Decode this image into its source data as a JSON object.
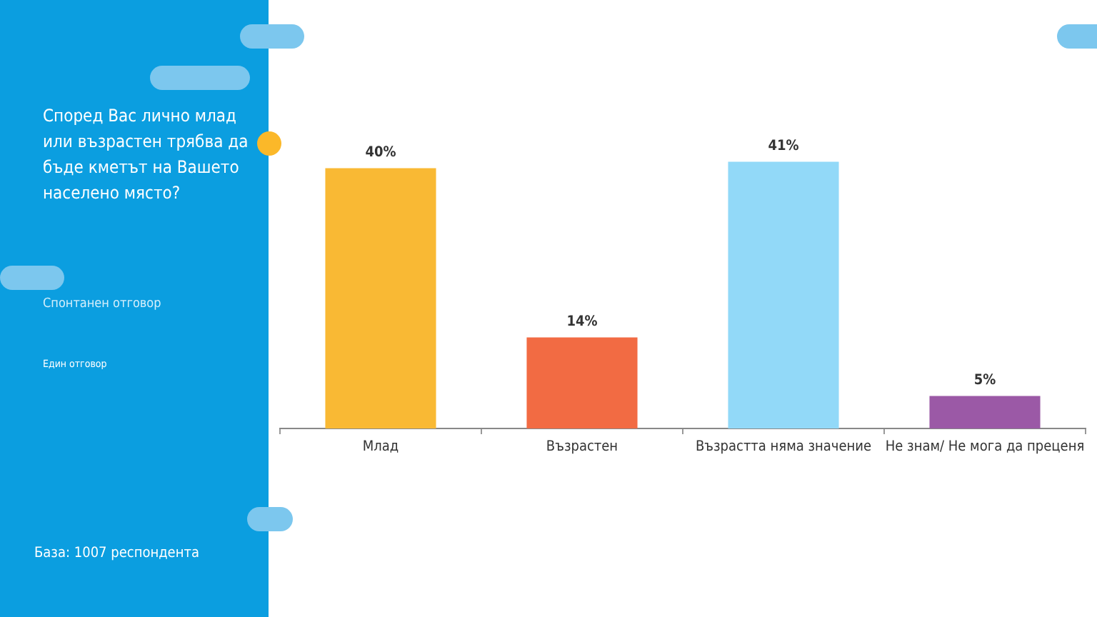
{
  "chart_data": {
    "type": "bar",
    "title": "Според Вас лично млад или възрастен трябва да бъде кметът на Вашето населено място?",
    "annotations": [
      "Спонтанен отговор",
      "Един отговор",
      "База: 1007 респондента"
    ],
    "categories": [
      "Млад",
      "Възрастен",
      "Възрастта няма значение",
      "Не знам/ Не мога да преценя"
    ],
    "values": [
      40,
      14,
      41,
      5
    ],
    "colors": [
      "#f9b934",
      "#f26b43",
      "#92d9f8",
      "#9b59a6"
    ],
    "value_labels": [
      "40%",
      "14%",
      "41%",
      "5%"
    ],
    "grid": false,
    "legend": false
  }
}
